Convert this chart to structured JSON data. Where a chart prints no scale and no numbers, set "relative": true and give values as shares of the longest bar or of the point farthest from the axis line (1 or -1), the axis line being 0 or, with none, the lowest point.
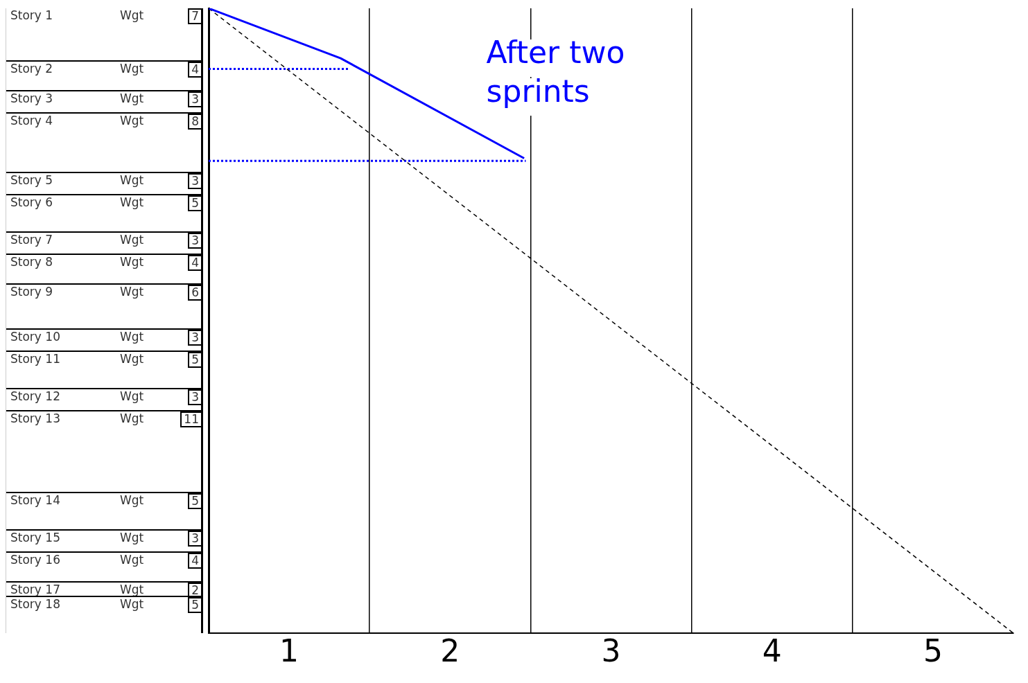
{
  "chart_data": [
    {
      "type": "other",
      "categories": [
        "Story 1",
        "Story 2",
        "Story 3",
        "Story 4",
        "Story 5",
        "Story 6",
        "Story 7",
        "Story 8",
        "Story 9",
        "Story 10",
        "Story 11",
        "Story 12",
        "Story 13",
        "Story 14",
        "Story 15",
        "Story 16",
        "Story 17",
        "Story 18"
      ],
      "values": [
        7,
        4,
        3,
        8,
        3,
        5,
        3,
        4,
        6,
        3,
        5,
        3,
        11,
        5,
        3,
        4,
        2,
        5
      ],
      "data_labels": true,
      "annotations": [
        "Wgt"
      ]
    },
    {
      "type": "line",
      "relative": true,
      "xlim": [
        0,
        5
      ],
      "xticks": [
        {
          "value": 0.5,
          "label": "1"
        },
        {
          "value": 1,
          "label": null
        },
        {
          "value": 1.5,
          "label": "2"
        },
        {
          "value": 2,
          "label": null
        },
        {
          "value": 2.5,
          "label": "3"
        },
        {
          "value": 3,
          "label": null
        },
        {
          "value": 3.5,
          "label": "4"
        },
        {
          "value": 4,
          "label": null
        },
        {
          "value": 4.5,
          "label": "5"
        }
      ],
      "annotations": [
        "After two sprints"
      ],
      "series": [
        {
          "color": "#0000ff",
          "x": [
            0,
            0.82,
            1.96
          ],
          "values": [
            1,
            0.92,
            0.76
          ]
        },
        {
          "color": "#000000",
          "x": [
            0,
            5
          ],
          "values": [
            1,
            0
          ],
          "line_style": "dashed"
        },
        {
          "color": "#0000ff",
          "x": [
            0,
            0.87
          ],
          "values": [
            0.903,
            0.903
          ],
          "line_style": "dotted"
        },
        {
          "color": "#0000ff",
          "x": [
            0,
            1.97
          ],
          "values": [
            0.756,
            0.756
          ],
          "line_style": "dotted"
        }
      ]
    }
  ]
}
